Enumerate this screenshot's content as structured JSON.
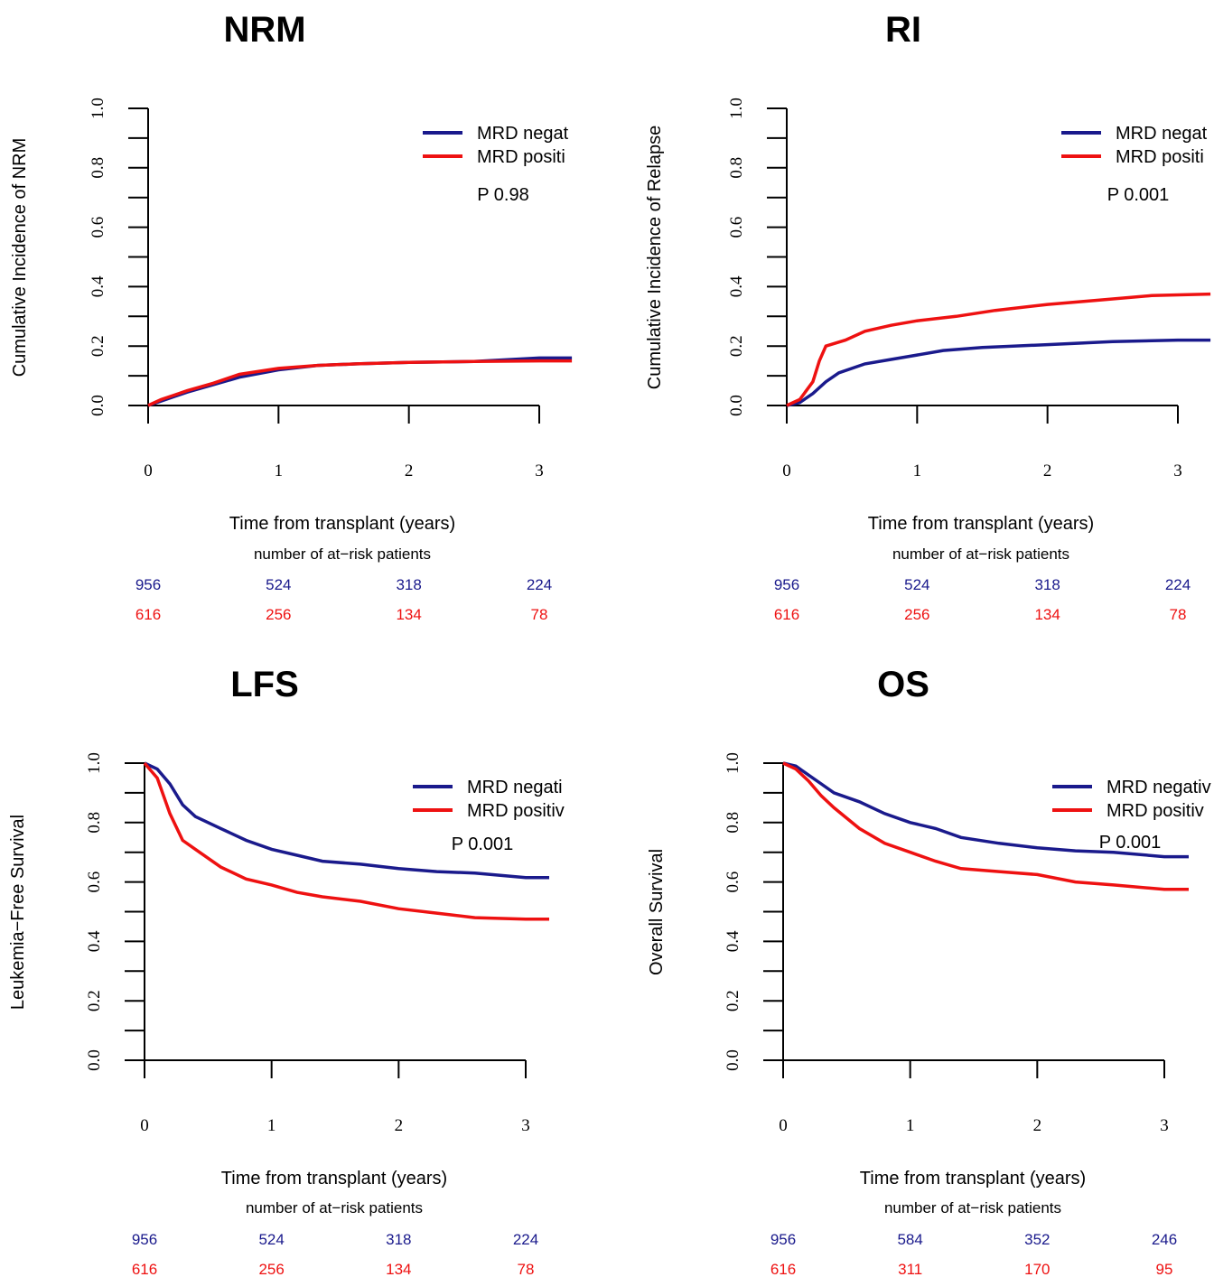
{
  "colors": {
    "negative": "#1a1a8c",
    "positive": "#ee1111"
  },
  "chart_data": [
    {
      "type": "line",
      "title": "NRM",
      "ylabel": "Cumulative Incidence of NRM",
      "xlabel": "Time from transplant (years)",
      "xlim": [
        0,
        3.25
      ],
      "ylim": [
        0,
        1
      ],
      "xticks": [
        "0",
        "1",
        "2",
        "3"
      ],
      "yticks": [
        "0.0",
        "0.2",
        "0.4",
        "0.6",
        "0.8",
        "1.0"
      ],
      "legend": {
        "placement": "top-right",
        "entries": [
          "MRD negat",
          "MRD positi"
        ]
      },
      "p_value": "P 0.98",
      "atrisk_title": "number of at−risk patients",
      "atrisk": {
        "negative": [
          "956",
          "524",
          "318",
          "224"
        ],
        "positive": [
          "616",
          "256",
          "134",
          "78"
        ]
      },
      "series": [
        {
          "key": "negative",
          "x": [
            0,
            0.1,
            0.2,
            0.3,
            0.5,
            0.7,
            1.0,
            1.3,
            1.6,
            2.0,
            2.5,
            3.0,
            3.25
          ],
          "values": [
            0,
            0.015,
            0.03,
            0.045,
            0.07,
            0.095,
            0.12,
            0.135,
            0.14,
            0.145,
            0.148,
            0.16,
            0.16
          ]
        },
        {
          "key": "positive",
          "x": [
            0,
            0.1,
            0.2,
            0.3,
            0.5,
            0.7,
            1.0,
            1.3,
            1.6,
            2.0,
            2.5,
            3.0,
            3.25
          ],
          "values": [
            0,
            0.02,
            0.035,
            0.05,
            0.075,
            0.105,
            0.125,
            0.135,
            0.14,
            0.145,
            0.148,
            0.15,
            0.15
          ]
        }
      ]
    },
    {
      "type": "line",
      "title": "RI",
      "ylabel": "Cumulative Incidence of Relapse",
      "xlabel": "Time from transplant (years)",
      "xlim": [
        0,
        3.25
      ],
      "ylim": [
        0,
        1
      ],
      "xticks": [
        "0",
        "1",
        "2",
        "3"
      ],
      "yticks": [
        "0.0",
        "0.2",
        "0.4",
        "0.6",
        "0.8",
        "1.0"
      ],
      "legend": {
        "placement": "top-right",
        "entries": [
          "MRD negat",
          "MRD positi"
        ]
      },
      "p_value": "P 0.001",
      "atrisk_title": "number of at−risk patients",
      "atrisk": {
        "negative": [
          "956",
          "524",
          "318",
          "224"
        ],
        "positive": [
          "616",
          "256",
          "134",
          "78"
        ]
      },
      "series": [
        {
          "key": "negative",
          "x": [
            0,
            0.1,
            0.2,
            0.3,
            0.4,
            0.6,
            0.8,
            1.0,
            1.2,
            1.5,
            2.0,
            2.5,
            3.0,
            3.25
          ],
          "values": [
            0,
            0.01,
            0.04,
            0.08,
            0.11,
            0.14,
            0.155,
            0.17,
            0.185,
            0.195,
            0.205,
            0.215,
            0.22,
            0.22
          ]
        },
        {
          "key": "positive",
          "x": [
            0,
            0.1,
            0.2,
            0.25,
            0.3,
            0.45,
            0.6,
            0.8,
            1.0,
            1.3,
            1.6,
            2.0,
            2.4,
            2.8,
            3.25
          ],
          "values": [
            0,
            0.02,
            0.08,
            0.15,
            0.2,
            0.22,
            0.25,
            0.27,
            0.285,
            0.3,
            0.32,
            0.34,
            0.355,
            0.37,
            0.375
          ]
        }
      ]
    },
    {
      "type": "line",
      "title": "LFS",
      "ylabel": "Leukemia−Free Survival",
      "xlabel": "Time from transplant (years)",
      "xlim": [
        0,
        3.2
      ],
      "ylim": [
        0,
        1
      ],
      "xticks": [
        "0",
        "1",
        "2",
        "3"
      ],
      "yticks": [
        "0.0",
        "0.2",
        "0.4",
        "0.6",
        "0.8",
        "1.0"
      ],
      "legend": {
        "placement": "top-right",
        "entries": [
          "MRD negati",
          "MRD positiv"
        ]
      },
      "p_value": "P 0.001",
      "atrisk_title": "number of at−risk patients",
      "atrisk": {
        "negative": [
          "956",
          "524",
          "318",
          "224"
        ],
        "positive": [
          "616",
          "256",
          "134",
          "78"
        ]
      },
      "series": [
        {
          "key": "negative",
          "x": [
            0,
            0.1,
            0.2,
            0.3,
            0.4,
            0.6,
            0.8,
            1.0,
            1.2,
            1.4,
            1.7,
            2.0,
            2.3,
            2.6,
            3.0,
            3.2
          ],
          "values": [
            1.0,
            0.98,
            0.93,
            0.86,
            0.82,
            0.78,
            0.74,
            0.71,
            0.69,
            0.67,
            0.66,
            0.645,
            0.635,
            0.63,
            0.615,
            0.615
          ]
        },
        {
          "key": "positive",
          "x": [
            0,
            0.1,
            0.2,
            0.3,
            0.4,
            0.6,
            0.8,
            1.0,
            1.2,
            1.4,
            1.7,
            2.0,
            2.3,
            2.6,
            3.0,
            3.2
          ],
          "values": [
            1.0,
            0.95,
            0.83,
            0.74,
            0.71,
            0.65,
            0.61,
            0.59,
            0.565,
            0.55,
            0.535,
            0.51,
            0.495,
            0.48,
            0.475,
            0.475
          ]
        }
      ]
    },
    {
      "type": "line",
      "title": "OS",
      "ylabel": "Overall Survival",
      "xlabel": "Time from transplant (years)",
      "xlim": [
        0,
        3.2
      ],
      "ylim": [
        0,
        1
      ],
      "xticks": [
        "0",
        "1",
        "2",
        "3"
      ],
      "yticks": [
        "0.0",
        "0.2",
        "0.4",
        "0.6",
        "0.8",
        "1.0"
      ],
      "legend": {
        "placement": "top-right",
        "entries": [
          "MRD negativ",
          "MRD positiv"
        ]
      },
      "p_value": "P 0.001",
      "atrisk_title": "number of at−risk patients",
      "atrisk": {
        "negative": [
          "956",
          "584",
          "352",
          "246"
        ],
        "positive": [
          "616",
          "311",
          "170",
          "95"
        ]
      },
      "series": [
        {
          "key": "negative",
          "x": [
            0,
            0.1,
            0.2,
            0.3,
            0.4,
            0.6,
            0.8,
            1.0,
            1.2,
            1.4,
            1.7,
            2.0,
            2.3,
            2.6,
            3.0,
            3.2
          ],
          "values": [
            1.0,
            0.99,
            0.96,
            0.93,
            0.9,
            0.87,
            0.83,
            0.8,
            0.78,
            0.75,
            0.73,
            0.715,
            0.705,
            0.7,
            0.685,
            0.685
          ]
        },
        {
          "key": "positive",
          "x": [
            0,
            0.1,
            0.2,
            0.3,
            0.4,
            0.6,
            0.8,
            1.0,
            1.2,
            1.4,
            1.7,
            2.0,
            2.3,
            2.6,
            3.0,
            3.2
          ],
          "values": [
            1.0,
            0.98,
            0.94,
            0.89,
            0.85,
            0.78,
            0.73,
            0.7,
            0.67,
            0.645,
            0.635,
            0.625,
            0.6,
            0.59,
            0.575,
            0.575
          ]
        }
      ]
    }
  ]
}
